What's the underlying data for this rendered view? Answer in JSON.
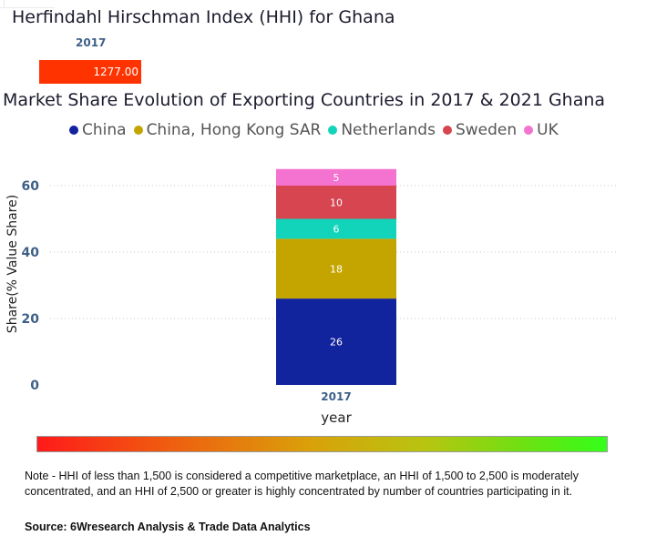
{
  "hhi": {
    "title": "Herfindahl Hirschman Index (HHI) for Ghana",
    "year": "2017",
    "value_label": "1277.00",
    "value": 1277.0,
    "bar_color": "#ff3300"
  },
  "chart_data": {
    "type": "bar",
    "stacked": true,
    "title": "Market Share Evolution of Exporting Countries in 2017 & 2021 Ghana",
    "xlabel": "year",
    "ylabel": "Share(% Value Share)",
    "categories": [
      "2017"
    ],
    "ylim": [
      0,
      66
    ],
    "yticks": [
      0,
      20,
      40,
      60
    ],
    "grid": true,
    "legend_position": "top",
    "series": [
      {
        "name": "China",
        "values": [
          26
        ],
        "color": "#12239e"
      },
      {
        "name": "China, Hong Kong SAR",
        "values": [
          18
        ],
        "color": "#c4a500"
      },
      {
        "name": "Netherlands",
        "values": [
          6
        ],
        "color": "#11d4bb"
      },
      {
        "name": "Sweden",
        "values": [
          10
        ],
        "color": "#d64550"
      },
      {
        "name": "UK",
        "values": [
          5
        ],
        "color": "#f472d0"
      }
    ]
  },
  "note": "Note - HHI of less than 1,500 is considered a competitive marketplace, an HHI of 1,500 to 2,500 is moderately concentrated, and an HHI of 2,500 or greater is highly concentrated by number of countries participating in it.",
  "source": "Source: 6Wresearch Analysis & Trade Data Analytics"
}
